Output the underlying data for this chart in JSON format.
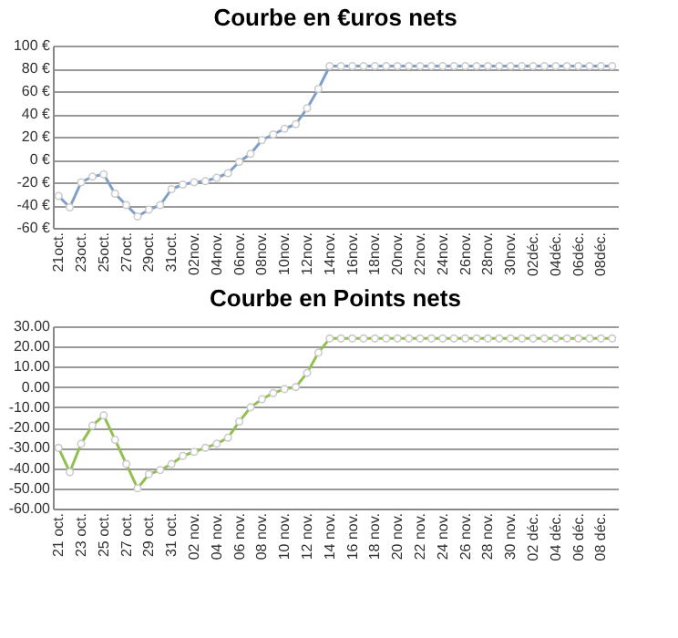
{
  "chart_data": [
    {
      "type": "line",
      "title": "Courbe en €uros nets",
      "categories": [
        "21oct.",
        null,
        "23oct.",
        null,
        "25oct.",
        null,
        "27oct.",
        null,
        "29oct.",
        null,
        "31oct.",
        null,
        "02nov.",
        null,
        "04nov.",
        null,
        "06nov.",
        null,
        "08nov.",
        null,
        "10nov.",
        null,
        "12nov.",
        null,
        "14nov.",
        null,
        "16nov.",
        null,
        "18nov.",
        null,
        "20nov.",
        null,
        "22nov.",
        null,
        "24nov.",
        null,
        "26nov.",
        null,
        "28nov.",
        null,
        "30nov.",
        null,
        "02déc.",
        null,
        "04déc.",
        null,
        "06déc.",
        null,
        "08déc.",
        null
      ],
      "series": [
        {
          "color": "#7f9fc8",
          "values": [
            -32,
            -42,
            -20,
            -15,
            -13,
            -30,
            -40,
            -50,
            -44,
            -40,
            -26,
            -22,
            -20,
            -19,
            -16,
            -12,
            -2,
            5,
            17,
            22,
            27,
            31,
            45,
            62,
            82,
            82,
            82,
            82,
            82,
            82,
            82,
            82,
            82,
            82,
            82,
            82,
            82,
            82,
            82,
            82,
            82,
            82,
            82,
            82,
            82,
            82,
            82,
            82,
            82,
            82
          ]
        }
      ],
      "ylim": [
        -60,
        100
      ],
      "yticks": [
        {
          "value": -60,
          "label": "-60 €"
        },
        {
          "value": -40,
          "label": "-40 €"
        },
        {
          "value": -20,
          "label": "-20 €"
        },
        {
          "value": 0,
          "label": "0 €"
        },
        {
          "value": 20,
          "label": "20 €"
        },
        {
          "value": 40,
          "label": "40 €"
        },
        {
          "value": 60,
          "label": "60 €"
        },
        {
          "value": 80,
          "label": "80 €"
        },
        {
          "value": 100,
          "label": "100 €"
        }
      ],
      "grid": "y",
      "marker": "circle"
    },
    {
      "type": "line",
      "title": "Courbe en Points nets",
      "categories": [
        "21 oct.",
        null,
        "23 oct.",
        null,
        "25 oct.",
        null,
        "27 oct.",
        null,
        "29 oct.",
        null,
        "31 oct.",
        null,
        "02 nov.",
        null,
        "04 nov.",
        null,
        "06 nov.",
        null,
        "08 nov.",
        null,
        "10 nov.",
        null,
        "12 nov.",
        null,
        "14 nov.",
        null,
        "16 nov.",
        null,
        "18 nov.",
        null,
        "20 nov.",
        null,
        "22 nov.",
        null,
        "24 nov.",
        null,
        "26 nov.",
        null,
        "28 nov.",
        null,
        "30 nov.",
        null,
        "02 déc.",
        null,
        "04 déc.",
        null,
        "06 déc.",
        null,
        "08 déc.",
        null
      ],
      "series": [
        {
          "color": "#92c050",
          "values": [
            -30,
            -42,
            -28,
            -19,
            -14,
            -26,
            -38,
            -50,
            -43,
            -41,
            -38,
            -34,
            -32,
            -30,
            -28,
            -25,
            -17,
            -10,
            -6,
            -3,
            -1,
            0,
            7,
            17,
            24,
            24,
            24,
            24,
            24,
            24,
            24,
            24,
            24,
            24,
            24,
            24,
            24,
            24,
            24,
            24,
            24,
            24,
            24,
            24,
            24,
            24,
            24,
            24,
            24,
            24
          ]
        }
      ],
      "ylim": [
        -60,
        30
      ],
      "yticks": [
        {
          "value": -60,
          "label": "-60.00"
        },
        {
          "value": -50,
          "label": "-50.00"
        },
        {
          "value": -40,
          "label": "-40.00"
        },
        {
          "value": -30,
          "label": "-30.00"
        },
        {
          "value": -20,
          "label": "-20.00"
        },
        {
          "value": -10,
          "label": "-10.00"
        },
        {
          "value": 0,
          "label": "0.00"
        },
        {
          "value": 10,
          "label": "10.00"
        },
        {
          "value": 20,
          "label": "20.00"
        },
        {
          "value": 30,
          "label": "30.00"
        }
      ],
      "grid": "y",
      "marker": "circle"
    }
  ]
}
